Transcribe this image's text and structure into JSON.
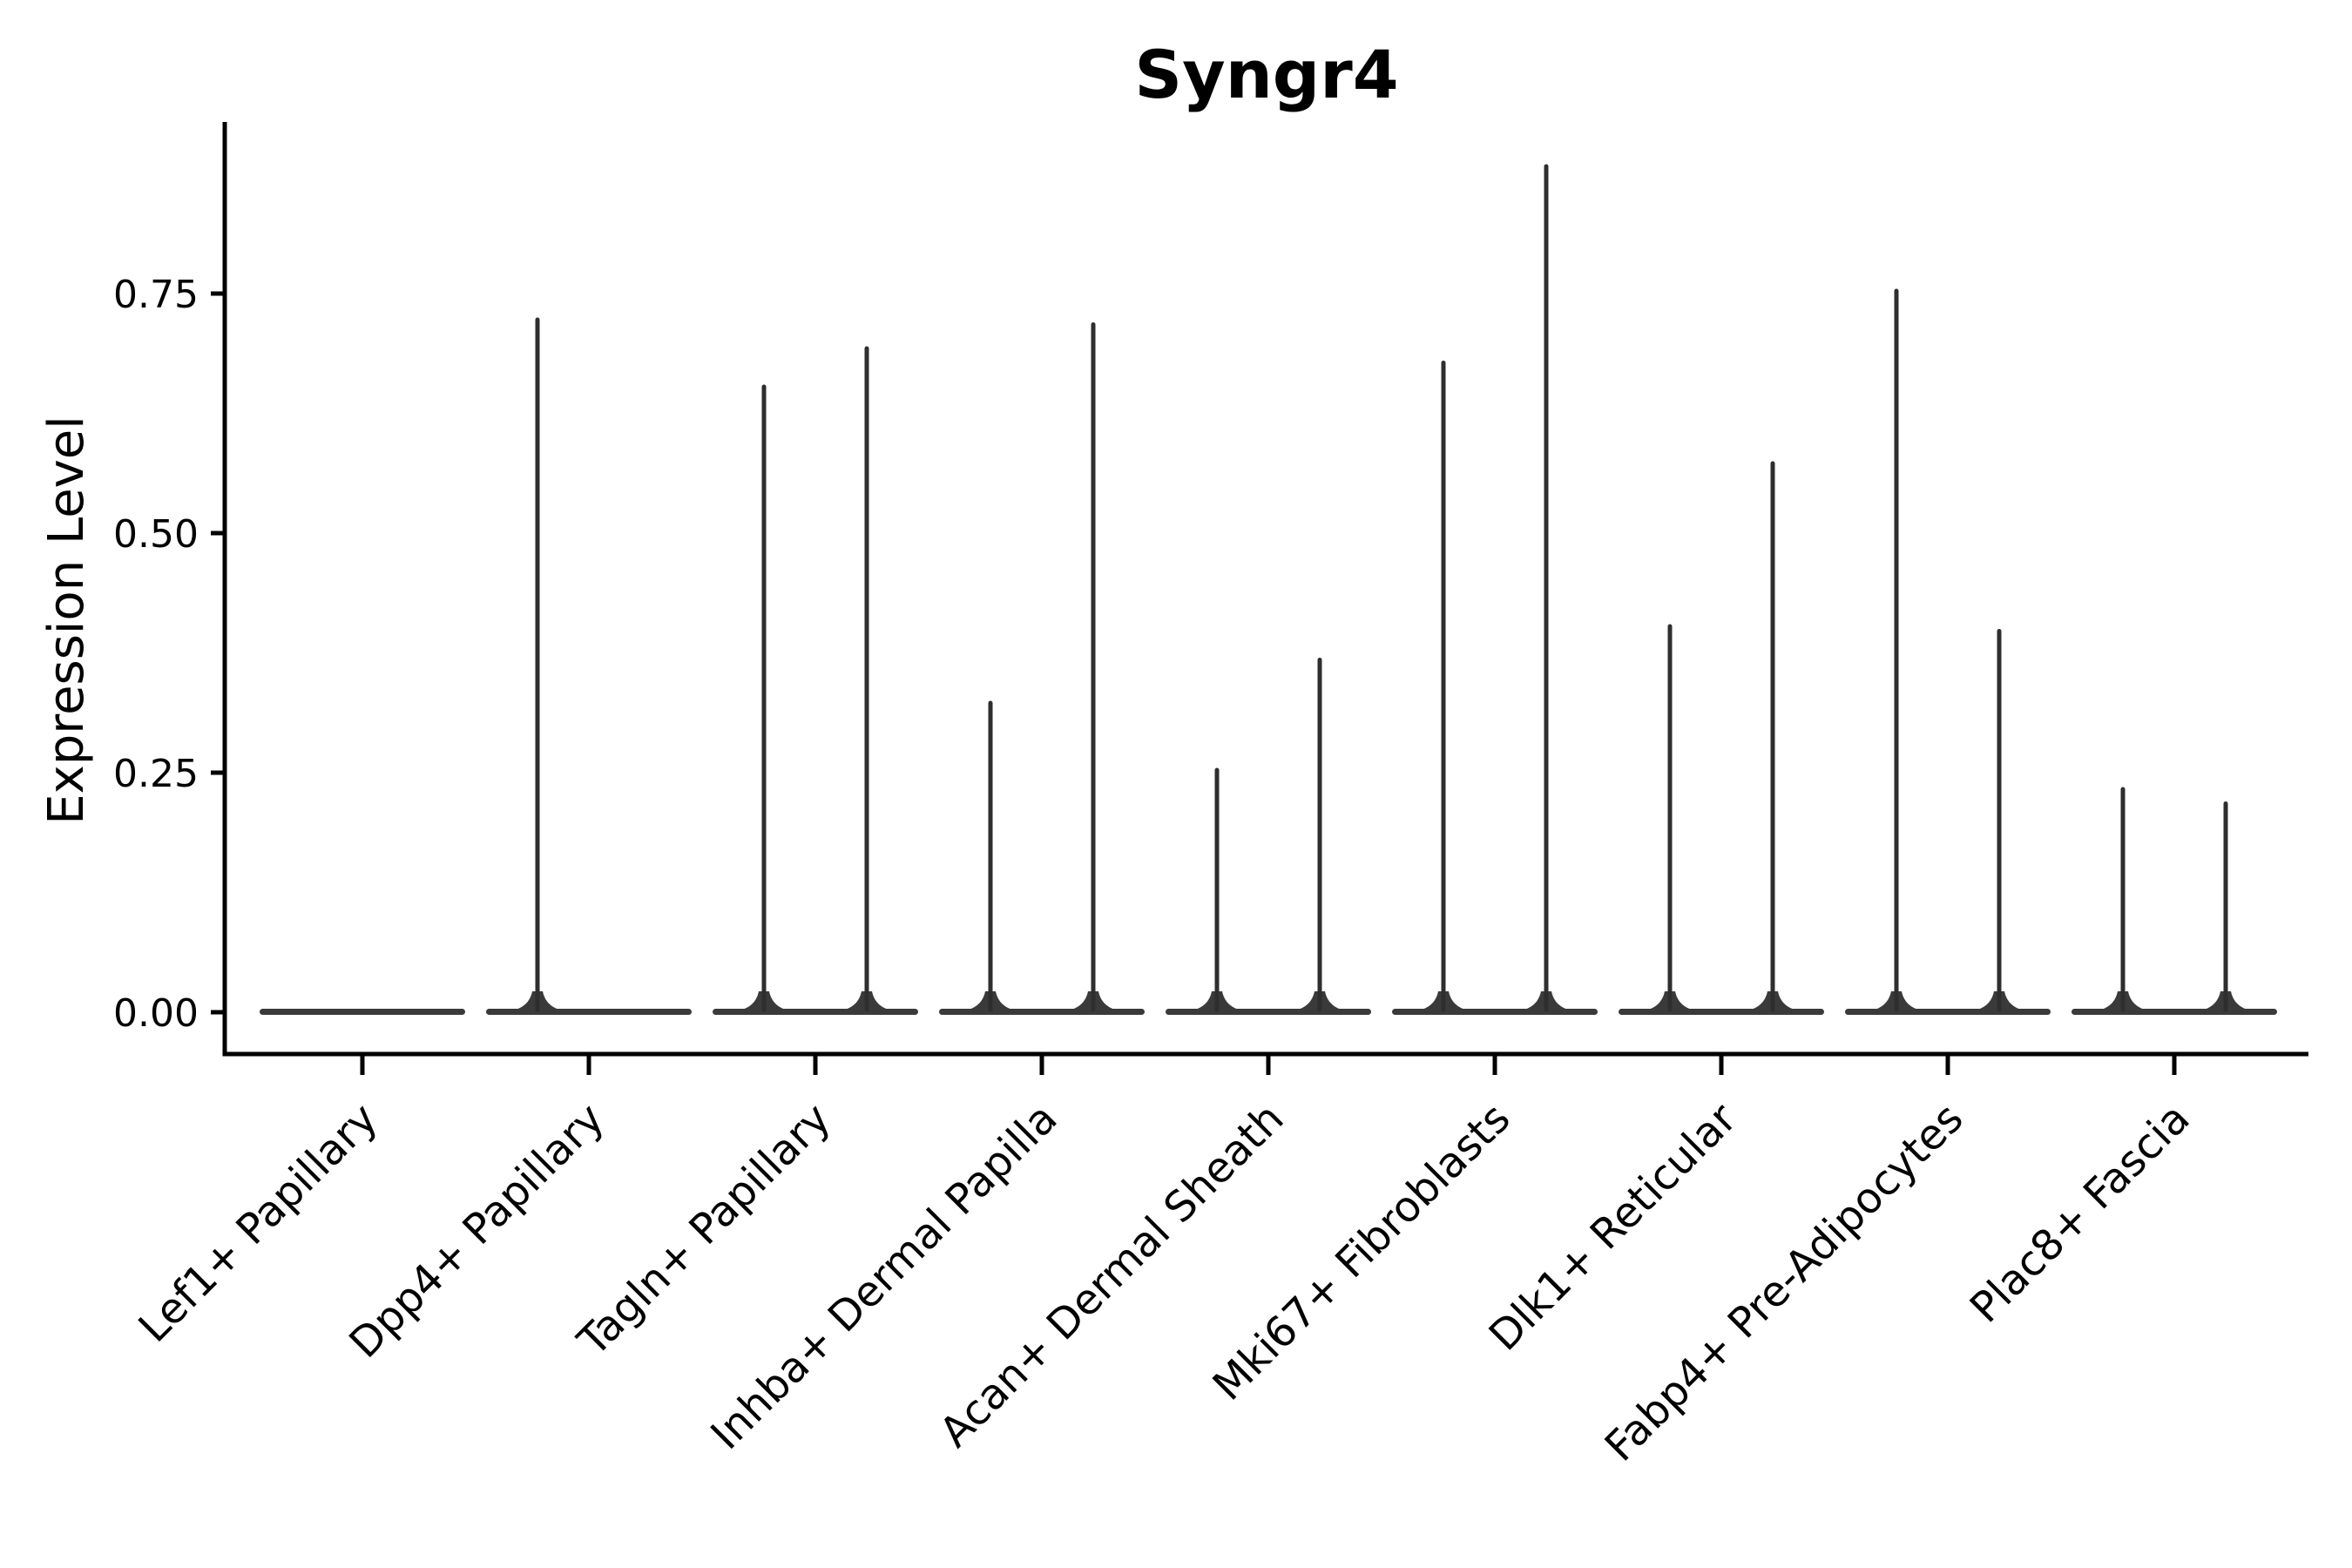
{
  "chart_data": {
    "type": "violin",
    "title": "Syngr4",
    "ylabel": "Expression Level",
    "xlabel": "",
    "ytick_labels": [
      "0.00",
      "0.25",
      "0.50",
      "0.75"
    ],
    "ytick_values": [
      0.0,
      0.25,
      0.5,
      0.75
    ],
    "ylim": [
      0.0,
      0.93
    ],
    "grid": false,
    "legend": "none",
    "violins_per_category": 2,
    "categories": [
      "Lef1+ Papillary",
      "Dpp4+ Papillary",
      "Tagln+ Papillary",
      "Inhba+ Dermal Papilla",
      "Acan+ Dermal Sheath",
      "Mki67+ Fibroblasts",
      "Dlk1+ Reticular",
      "Fabp4+ Pre-Adipocytes",
      "Plac8+ Fascia"
    ],
    "series": [
      {
        "category": "Lef1+ Papillary",
        "violin_max": [
          0.0,
          0.0
        ]
      },
      {
        "category": "Dpp4+ Papillary",
        "violin_max": [
          0.725,
          0.0
        ]
      },
      {
        "category": "Tagln+ Papillary",
        "violin_max": [
          0.655,
          0.695
        ]
      },
      {
        "category": "Inhba+ Dermal Papilla",
        "violin_max": [
          0.325,
          0.72
        ]
      },
      {
        "category": "Acan+ Dermal Sheath",
        "violin_max": [
          0.255,
          0.37
        ]
      },
      {
        "category": "Mki67+ Fibroblasts",
        "violin_max": [
          0.68,
          0.885
        ]
      },
      {
        "category": "Dlk1+ Reticular",
        "violin_max": [
          0.405,
          0.575
        ]
      },
      {
        "category": "Fabp4+ Pre-Adipocytes",
        "violin_max": [
          0.755,
          0.4
        ]
      },
      {
        "category": "Plac8+ Fascia",
        "violin_max": [
          0.235,
          0.22
        ]
      }
    ],
    "colors": {
      "violin_spike": "#2e2e2e",
      "violin_base": "#3a3a3a",
      "axis": "#000000",
      "text": "#000000",
      "background": "#ffffff"
    }
  }
}
